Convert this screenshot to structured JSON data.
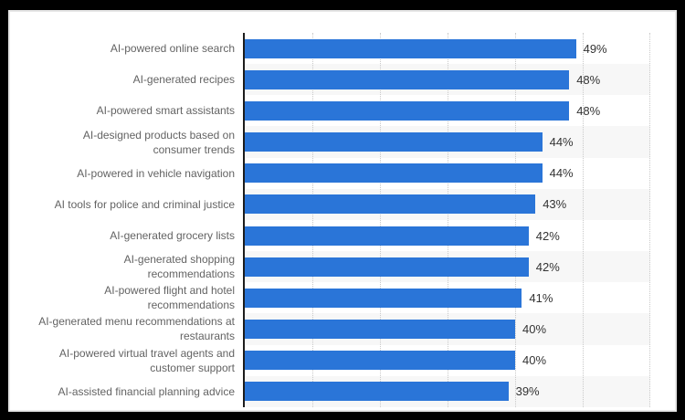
{
  "frame": {
    "outer_color": "#000000",
    "page_border_color": "#e7e7e7",
    "page_background": "#ffffff"
  },
  "chart_data": {
    "type": "bar",
    "orientation": "horizontal",
    "unit": "%",
    "categories": [
      "AI-powered online search",
      "AI-generated recipes",
      "AI-powered smart assistants",
      "AI-designed products based on\nconsumer trends",
      "AI-powered in vehicle navigation",
      "AI tools for police and criminal justice",
      "AI-generated grocery lists",
      "AI-generated shopping\nrecommendations",
      "AI-powered flight and hotel\nrecommendations",
      "AI-generated menu recommendations at\nrestaurants",
      "AI-powered virtual travel agents and\ncustomer support",
      "AI-assisted financial planning advice"
    ],
    "values": [
      49,
      48,
      48,
      44,
      44,
      43,
      42,
      42,
      41,
      40,
      40,
      39
    ],
    "value_labels": [
      "49%",
      "48%",
      "48%",
      "44%",
      "44%",
      "43%",
      "42%",
      "42%",
      "41%",
      "40%",
      "40%",
      "39%"
    ],
    "xlim": [
      0,
      60
    ],
    "gridline_interval": 10,
    "grid_style": "dotted-vertical",
    "legend": "none",
    "colors": {
      "bar": "#2a75d8",
      "stripe": "#f7f7f7",
      "gridline": "#c9c9c9",
      "axis_line": "#1d1d1d",
      "category_label": "#636363",
      "value_label": "#333333"
    },
    "row_striping": "even rows shaded across plot area only"
  }
}
